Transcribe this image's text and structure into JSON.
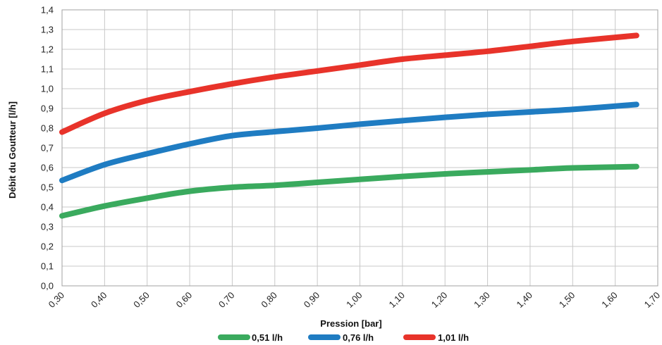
{
  "chart_data": {
    "type": "line",
    "title": "",
    "xlabel": "Pression [bar]",
    "ylabel": "Débit du Goutteur [l/h]",
    "xlim": [
      0.3,
      1.7
    ],
    "ylim": [
      0.0,
      1.4
    ],
    "x_ticks": [
      "0,30",
      "0,40",
      "0,50",
      "0,60",
      "0,70",
      "0,80",
      "0,90",
      "1,00",
      "1,10",
      "1,20",
      "1,30",
      "1,40",
      "1,50",
      "1,60",
      "1,70"
    ],
    "y_ticks": [
      "0,0",
      "0,1",
      "0,2",
      "0,3",
      "0,4",
      "0,5",
      "0,6",
      "0,7",
      "0,8",
      "0,9",
      "1,0",
      "1,1",
      "1,2",
      "1,3",
      "1,4"
    ],
    "grid": true,
    "legend_position": "bottom",
    "series": [
      {
        "name": "0,51 l/h",
        "color": "#3aaa5e",
        "x": [
          0.3,
          0.4,
          0.5,
          0.6,
          0.7,
          0.8,
          0.9,
          1.0,
          1.1,
          1.2,
          1.3,
          1.4,
          1.5,
          1.65
        ],
        "y": [
          0.355,
          0.405,
          0.445,
          0.48,
          0.5,
          0.51,
          0.525,
          0.54,
          0.555,
          0.568,
          0.578,
          0.588,
          0.598,
          0.605
        ]
      },
      {
        "name": "0,76 l/h",
        "color": "#1f7cc2",
        "x": [
          0.3,
          0.4,
          0.5,
          0.6,
          0.7,
          0.8,
          0.9,
          1.0,
          1.1,
          1.2,
          1.3,
          1.4,
          1.5,
          1.65
        ],
        "y": [
          0.535,
          0.615,
          0.67,
          0.72,
          0.762,
          0.782,
          0.8,
          0.82,
          0.838,
          0.855,
          0.87,
          0.882,
          0.895,
          0.92
        ]
      },
      {
        "name": "1,01 l/h",
        "color": "#e8332a",
        "x": [
          0.3,
          0.4,
          0.5,
          0.6,
          0.7,
          0.8,
          0.9,
          1.0,
          1.1,
          1.2,
          1.3,
          1.4,
          1.5,
          1.65
        ],
        "y": [
          0.78,
          0.875,
          0.94,
          0.985,
          1.025,
          1.06,
          1.09,
          1.12,
          1.15,
          1.17,
          1.19,
          1.215,
          1.24,
          1.27
        ]
      }
    ]
  }
}
